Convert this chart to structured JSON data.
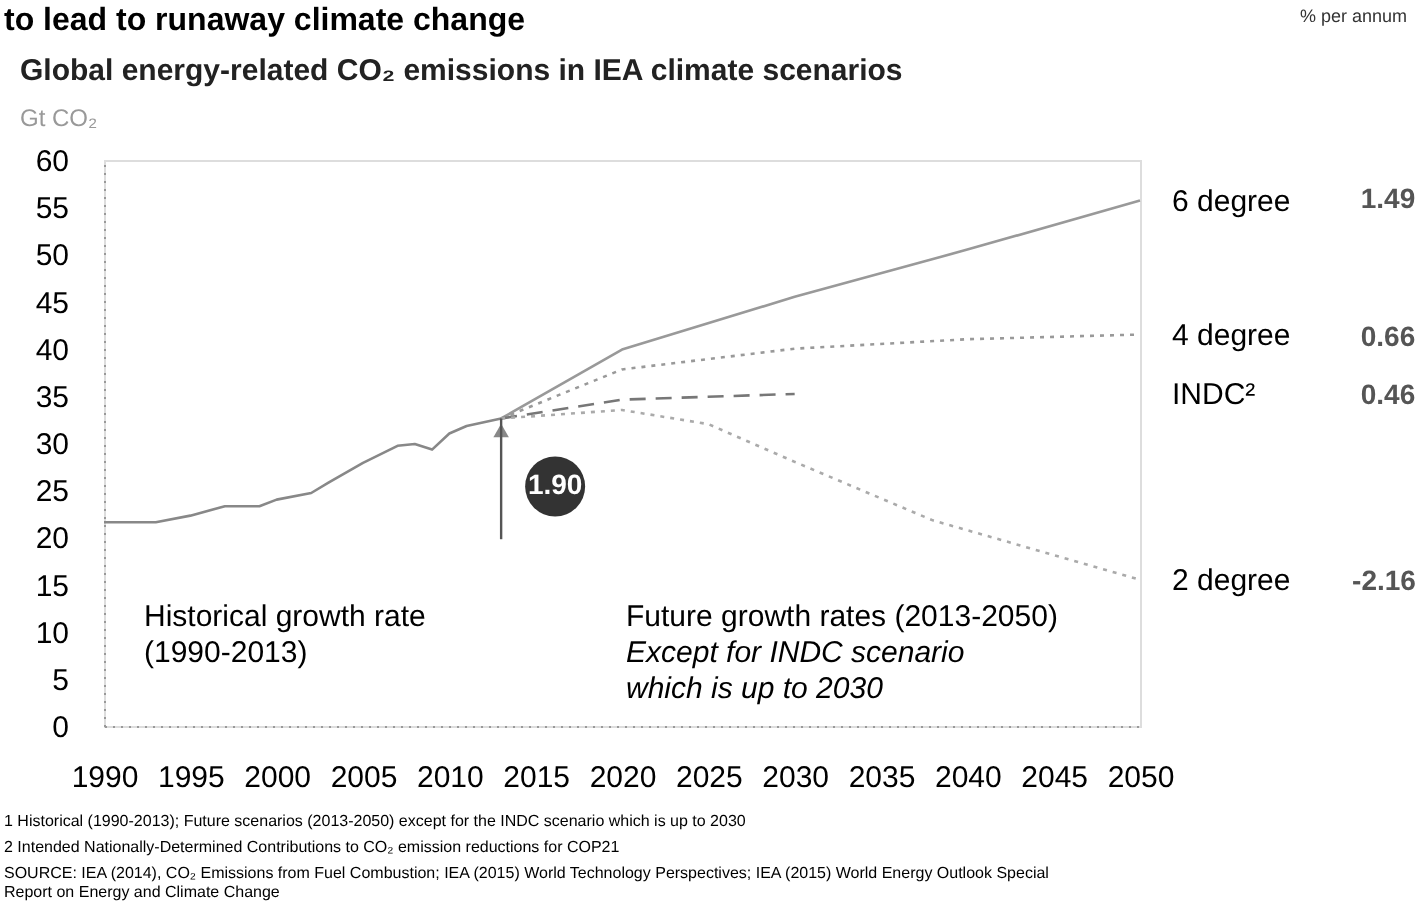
{
  "chart_data": {
    "type": "line",
    "title": "to lead to runaway climate change",
    "subtitle": "Global energy-related CO₂ emissions in IEA climate scenarios",
    "ylabel": "Gt CO₂",
    "xlim": [
      1990,
      2050
    ],
    "xticks": [
      1990,
      1995,
      2000,
      2005,
      2010,
      2015,
      2020,
      2025,
      2030,
      2035,
      2040,
      2045,
      2050
    ],
    "ylim": [
      0,
      60
    ],
    "yticks": [
      0,
      5,
      10,
      15,
      20,
      25,
      30,
      35,
      40,
      45,
      50,
      55,
      60
    ],
    "grid": false,
    "legend": false,
    "marker": "none",
    "annotations": [
      {
        "text": "1.90",
        "x": 2013,
        "y": 32.6
      },
      "1.49",
      "0.66",
      "0.46",
      "-2.16",
      "% per annum",
      "Historical growth rate\n(1990-2013)",
      "Future growth rates (2013-2050)",
      "Except for INDC scenario\nwhich is up to 2030",
      "1 Historical (1990-2013); Future scenarios (2013-2050) except for the INDC scenario which is up to 2030",
      "2 Intended Nationally-Determined Contributions to CO₂ emission reductions for COP21",
      "SOURCE: IEA (2014), CO₂ Emissions from Fuel Combustion; IEA (2015) World Technology Perspectives; IEA (2015) World Energy Outlook Special\n        Report on Energy and Climate Change"
    ],
    "series": [
      {
        "color": "#888888",
        "line_style": "solid",
        "x": [
          1990,
          1993,
          1995,
          1997,
          1999,
          2000,
          2002,
          2003,
          2005,
          2007,
          2008,
          2009,
          2010,
          2011,
          2012,
          2013
        ],
        "values": [
          21.6,
          21.6,
          22.3,
          23.3,
          23.3,
          24,
          24.7,
          25.8,
          27.9,
          29.7,
          29.9,
          29.3,
          31,
          31.8,
          32.2,
          32.6
        ]
      },
      {
        "name": "6 degree",
        "color": "#999999",
        "line_style": "solid",
        "x": [
          2013,
          2020,
          2030,
          2040,
          2050
        ],
        "values": [
          32.6,
          39.9,
          45.5,
          50.5,
          55.7
        ]
      },
      {
        "name": "4 degree",
        "color": "#999999",
        "line_style": "dotted",
        "x": [
          2013,
          2020,
          2030,
          2040,
          2050
        ],
        "values": [
          32.6,
          37.8,
          40,
          41,
          41.5
        ]
      },
      {
        "name": "INDC²",
        "color": "#777777",
        "line_style": "dashed",
        "x": [
          2013,
          2020,
          2030
        ],
        "values": [
          32.6,
          34.6,
          35.2
        ]
      },
      {
        "name": "2 degree",
        "color": "#aaaaaa",
        "line_style": "dotted",
        "x": [
          2013,
          2020,
          2025,
          2030,
          2038,
          2050
        ],
        "values": [
          32.6,
          33.5,
          32,
          28,
          21.8,
          15.5
        ]
      }
    ]
  }
}
